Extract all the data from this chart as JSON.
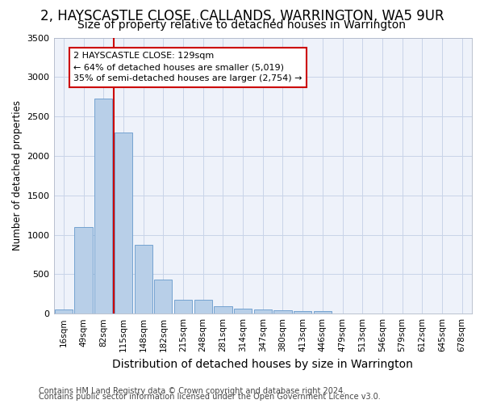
{
  "title1": "2, HAYSCASTLE CLOSE, CALLANDS, WARRINGTON, WA5 9UR",
  "title2": "Size of property relative to detached houses in Warrington",
  "xlabel": "Distribution of detached houses by size in Warrington",
  "ylabel": "Number of detached properties",
  "categories": [
    "16sqm",
    "49sqm",
    "82sqm",
    "115sqm",
    "148sqm",
    "182sqm",
    "215sqm",
    "248sqm",
    "281sqm",
    "314sqm",
    "347sqm",
    "380sqm",
    "413sqm",
    "446sqm",
    "479sqm",
    "513sqm",
    "546sqm",
    "579sqm",
    "612sqm",
    "645sqm",
    "678sqm"
  ],
  "values": [
    50,
    1100,
    2730,
    2300,
    870,
    430,
    175,
    175,
    90,
    65,
    55,
    40,
    35,
    30,
    0,
    0,
    0,
    0,
    0,
    0,
    0
  ],
  "bar_color": "#b8cfe8",
  "bar_edge_color": "#6699cc",
  "grid_color": "#c8d4e8",
  "bg_color": "#eef2fa",
  "vline_color": "#cc0000",
  "vline_x_index": 2.5,
  "annotation_text": "2 HAYSCASTLE CLOSE: 129sqm\n← 64% of detached houses are smaller (5,019)\n35% of semi-detached houses are larger (2,754) →",
  "annotation_box_color": "#cc0000",
  "footer1": "Contains HM Land Registry data © Crown copyright and database right 2024.",
  "footer2": "Contains public sector information licensed under the Open Government Licence v3.0.",
  "ylim": [
    0,
    3500
  ],
  "title1_fontsize": 12,
  "title2_fontsize": 10,
  "xlabel_fontsize": 10,
  "ylabel_fontsize": 8.5,
  "tick_fontsize": 7.5,
  "annotation_fontsize": 8,
  "footer_fontsize": 7
}
